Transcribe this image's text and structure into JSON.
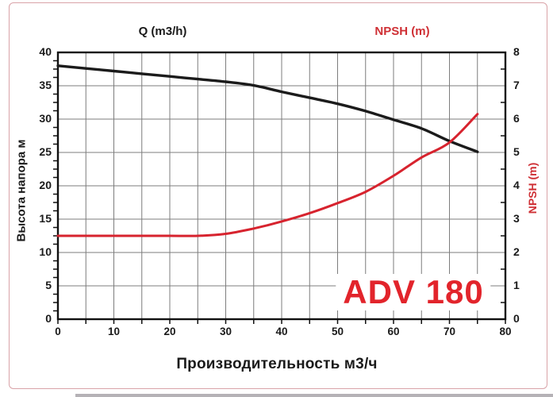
{
  "chart_data": {
    "type": "line",
    "title_left": "Q (m3/h)",
    "title_right": "NPSH (m)",
    "xlabel": "Производительность м3/ч",
    "ylabel_left": "Высота напора м",
    "ylabel_right": "NPSH (m)",
    "model_label": "ADV 180",
    "grid": true,
    "legend": "none",
    "x_axis": {
      "min": 0,
      "max": 80,
      "grid_step": 5,
      "tick_step": 5,
      "tick_labels": [
        0,
        10,
        20,
        30,
        40,
        50,
        60,
        70,
        80
      ]
    },
    "y_left_axis": {
      "min": 0,
      "max": 40,
      "grid_step": 5,
      "minor_tick_step": 1.25,
      "tick_labels": [
        0,
        5,
        10,
        15,
        20,
        25,
        30,
        35,
        40
      ]
    },
    "y_right_axis": {
      "min": 0,
      "max": 8,
      "grid_step": 1,
      "minor_tick_step": 0.5,
      "tick_labels": [
        0,
        1,
        2,
        3,
        4,
        5,
        6,
        7,
        8
      ]
    },
    "series": [
      {
        "name": "head_curve",
        "axis": "left",
        "color": "#1b1b1b",
        "width": 3.4,
        "x": [
          0,
          5,
          10,
          15,
          20,
          25,
          30,
          35,
          40,
          45,
          50,
          55,
          60,
          65,
          70,
          75
        ],
        "y": [
          38,
          37.6,
          37.2,
          36.8,
          36.4,
          36.0,
          35.6,
          35.05,
          34.1,
          33.2,
          32.3,
          31.2,
          29.9,
          28.6,
          26.7,
          25.1
        ]
      },
      {
        "name": "npsh_curve",
        "axis": "right",
        "color": "#d7232e",
        "width": 3.0,
        "x": [
          0,
          5,
          10,
          15,
          20,
          25,
          30,
          35,
          40,
          45,
          50,
          55,
          60,
          65,
          70,
          75
        ],
        "y": [
          2.5,
          2.5,
          2.5,
          2.5,
          2.5,
          2.5,
          2.56,
          2.72,
          2.93,
          3.18,
          3.48,
          3.82,
          4.3,
          4.85,
          5.3,
          6.15
        ]
      }
    ],
    "colors": {
      "accent_red": "#cf3035",
      "model_red": "#e2242b",
      "curve_red": "#d7232e",
      "curve_black": "#1b1b1b",
      "grid": "#7d7d7d",
      "axis": "#111111",
      "page_border": "#d9a3a8",
      "text": "#1a1a1a"
    }
  }
}
